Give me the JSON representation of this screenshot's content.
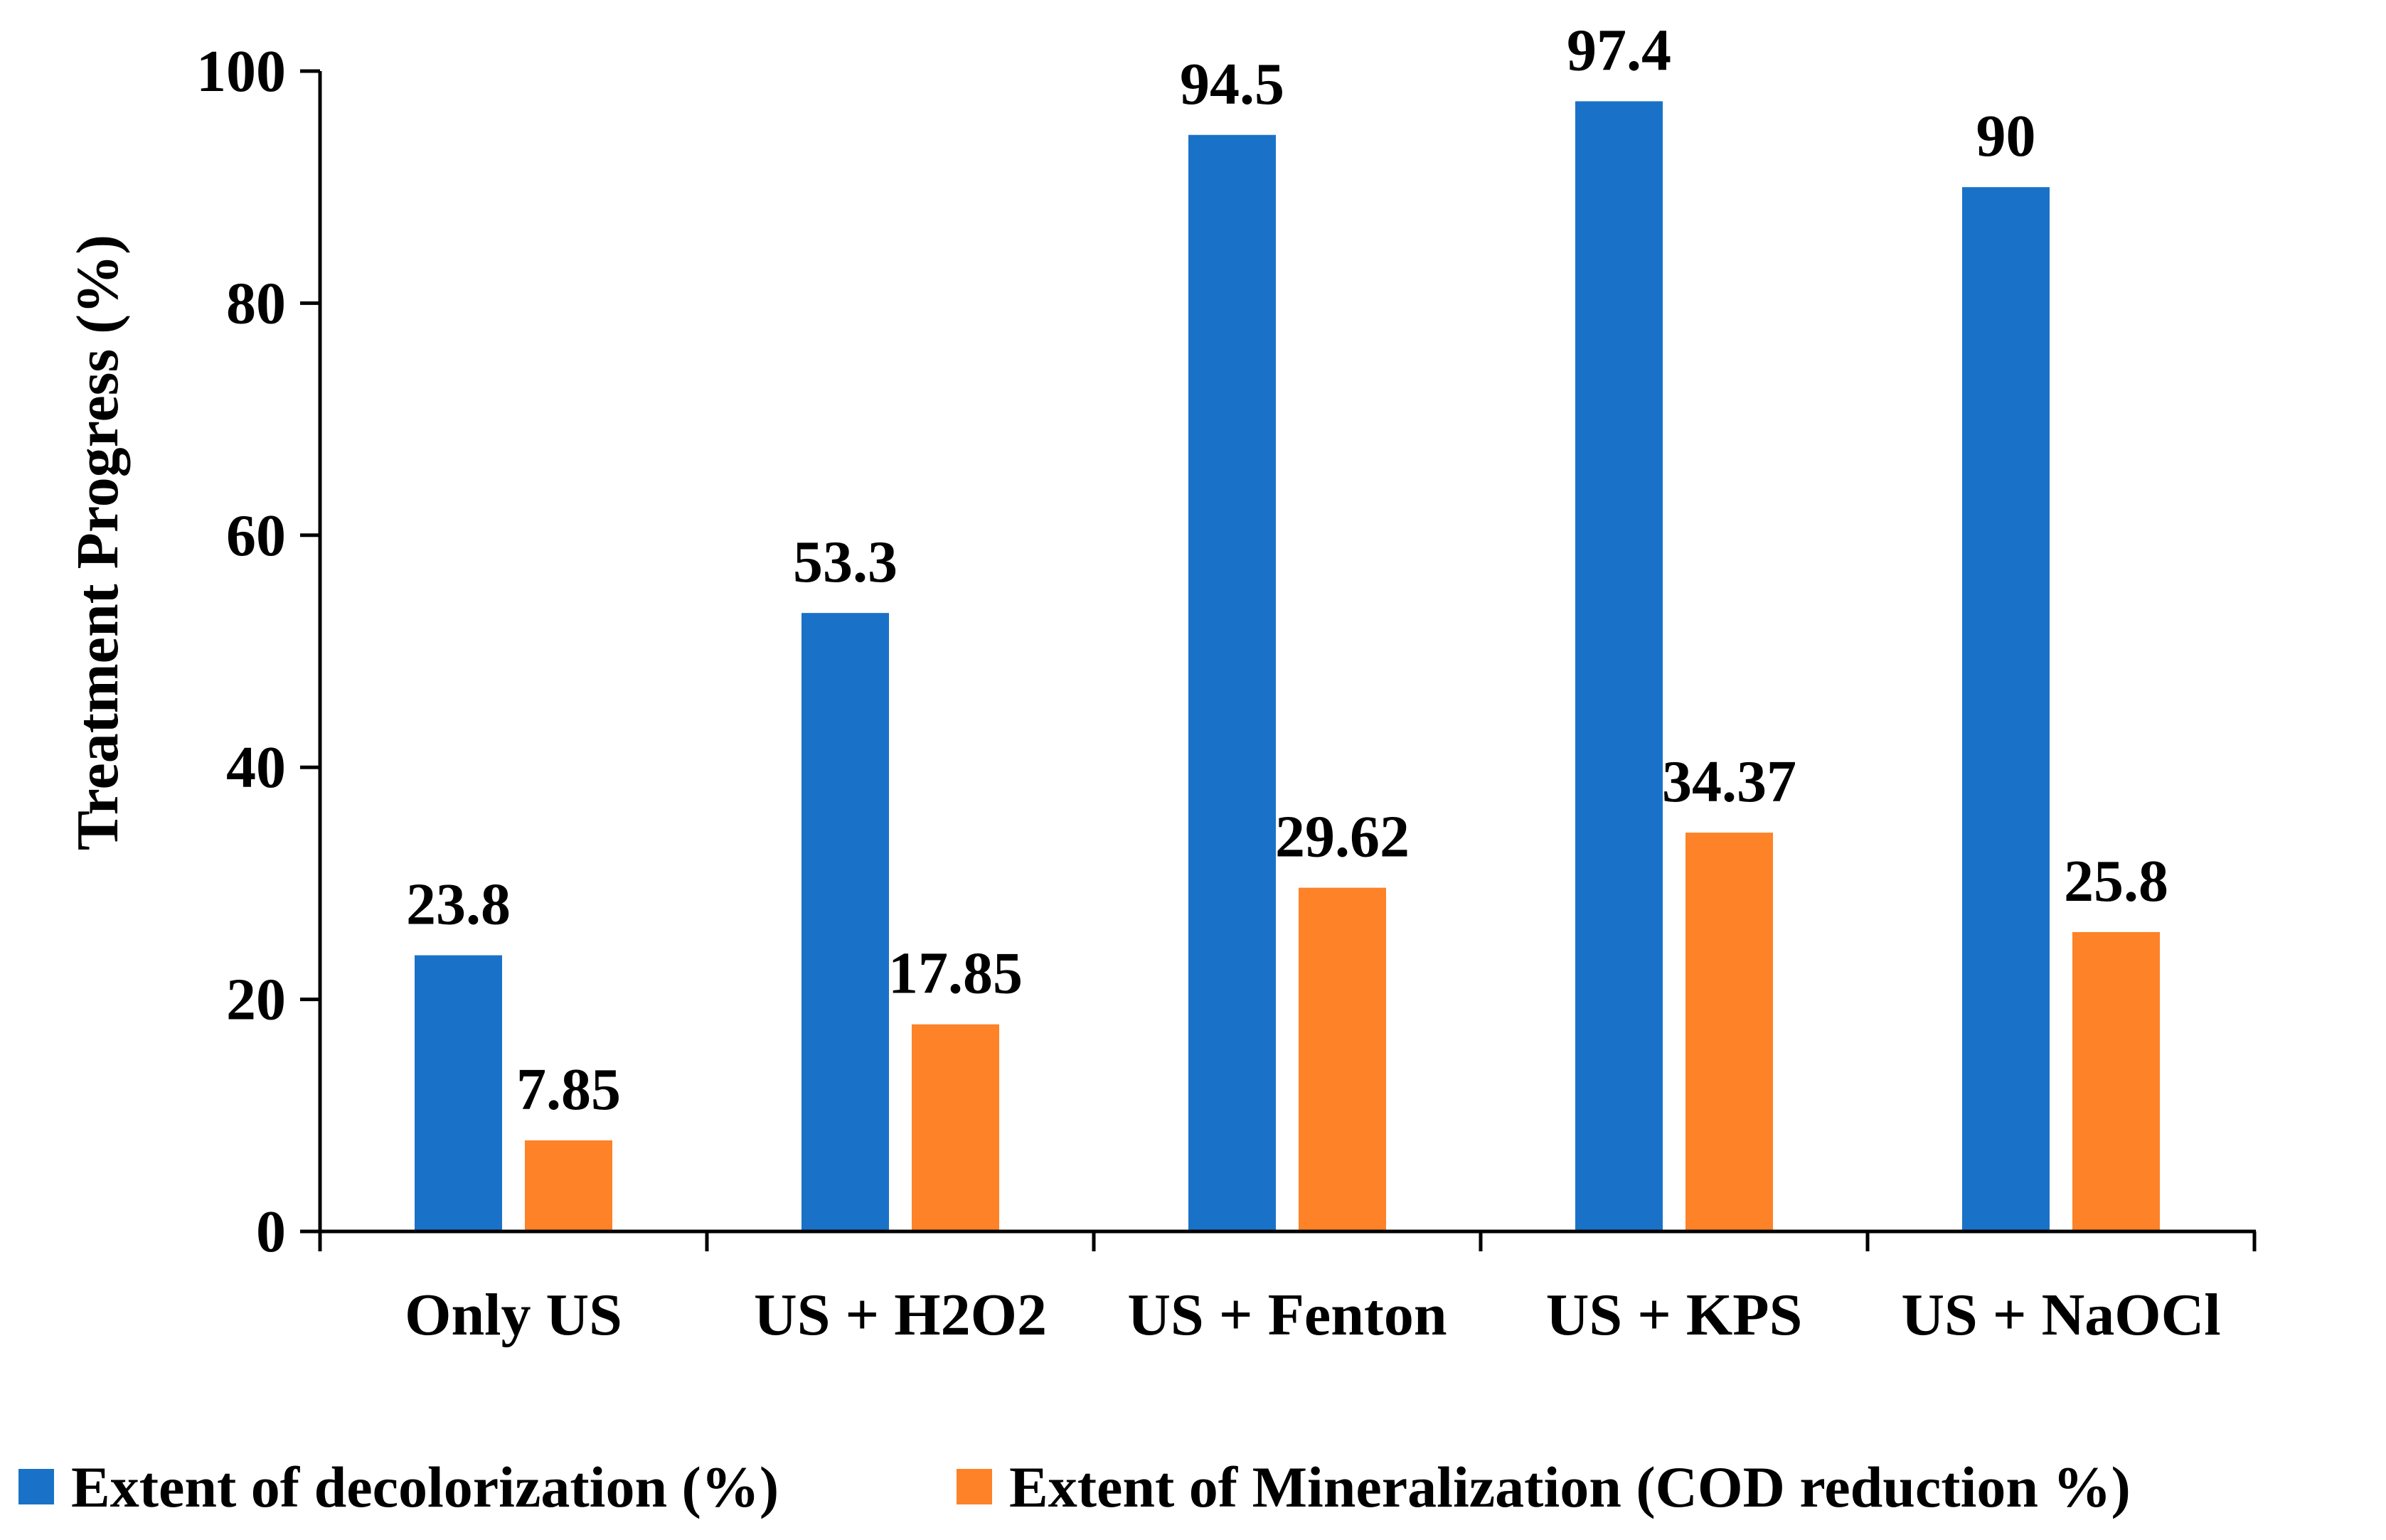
{
  "chart_data": {
    "type": "bar",
    "title": "",
    "xlabel": "",
    "ylabel": "Treatment Progress (%)",
    "ylim": [
      0,
      100
    ],
    "yticks": [
      0,
      20,
      40,
      60,
      80,
      100
    ],
    "grid": false,
    "legend_position": "bottom",
    "categories": [
      "Only US",
      "US + H2O2",
      "US + Fenton",
      "US + KPS",
      "US + NaOCl"
    ],
    "series": [
      {
        "name": "Extent of decolorization (%)",
        "color": "#1a72c8",
        "values": [
          23.8,
          53.3,
          94.5,
          97.4,
          90
        ],
        "labels": [
          "23.8",
          "53.3",
          "94.5",
          "97.4",
          "90"
        ]
      },
      {
        "name": "Extent of Mineralization (COD reduction %)",
        "color": "#fe8228",
        "values": [
          7.85,
          17.85,
          29.62,
          34.37,
          25.8
        ],
        "labels": [
          "7.85",
          "17.85",
          "29.62",
          "34.37",
          "25.8"
        ]
      }
    ]
  }
}
